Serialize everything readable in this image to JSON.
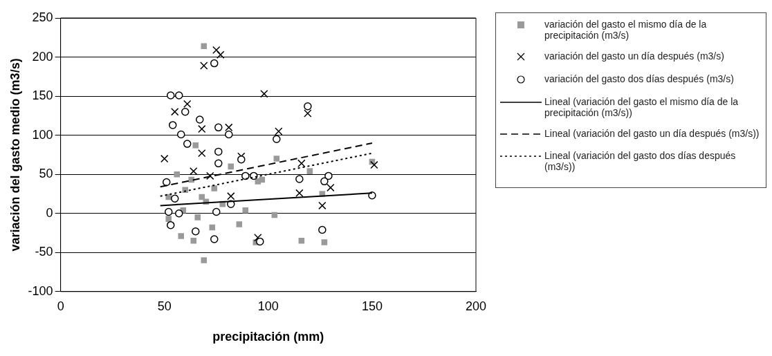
{
  "chart_data": {
    "type": "scatter",
    "xlabel": "precipitación (mm)",
    "ylabel": "variación del gasto medio (m3/s)",
    "xlim": [
      0,
      200
    ],
    "xticks": [
      0,
      50,
      100,
      150,
      200
    ],
    "ylim": [
      -100,
      250
    ],
    "yticks": [
      -100,
      -50,
      0,
      50,
      100,
      150,
      200,
      250
    ],
    "grid": "y",
    "legend": "right",
    "series": [
      {
        "name": "variación del gasto el mismo día de la precipitación (m3/s)",
        "type": "scatter",
        "marker": "square",
        "color": "#9a9a9a",
        "x": [
          69,
          69,
          104,
          95,
          120,
          150,
          126,
          103,
          116,
          127,
          94,
          86,
          89,
          97,
          82,
          65,
          73,
          58,
          64,
          52,
          52,
          68,
          63,
          59,
          78,
          74,
          60,
          70,
          56,
          66
        ],
        "values": [
          214,
          -60,
          70,
          41,
          54,
          66,
          25,
          -2,
          -35,
          -37,
          -37,
          -14,
          4,
          43,
          60,
          87,
          -18,
          -29,
          -35,
          -7,
          21,
          21,
          43,
          4,
          12,
          32,
          30,
          15,
          50,
          -5
        ]
      },
      {
        "name": "variación del gasto un día después (m3/s)",
        "type": "scatter",
        "marker": "cross",
        "color": "#000000",
        "x": [
          75,
          77,
          69,
          98,
          61,
          55,
          68,
          81,
          68,
          50,
          87,
          64,
          72,
          82,
          95,
          119,
          105,
          116,
          151,
          115,
          130,
          126
        ],
        "values": [
          209,
          203,
          189,
          153,
          140,
          130,
          108,
          110,
          77,
          70,
          73,
          54,
          48,
          22,
          -31,
          128,
          105,
          64,
          62,
          26,
          33,
          10
        ]
      },
      {
        "name": "variación del gasto dos días después (m3/s)",
        "type": "scatter",
        "marker": "circle",
        "color": "#000000",
        "x": [
          74,
          53,
          57,
          60,
          67,
          54,
          76,
          58,
          81,
          61,
          76,
          87,
          76,
          89,
          51,
          55,
          82,
          75,
          52,
          57,
          53,
          74,
          65,
          119,
          104,
          93,
          115,
          129,
          127,
          150,
          126,
          96
        ],
        "values": [
          192,
          151,
          151,
          130,
          120,
          113,
          110,
          101,
          101,
          89,
          79,
          69,
          64,
          48,
          40,
          19,
          12,
          2,
          2,
          0,
          -15,
          -33,
          -23,
          137,
          95,
          48,
          44,
          48,
          41,
          23,
          -21,
          -36
        ]
      },
      {
        "name": "Lineal (variación del gasto el mismo día de la precipitación (m3/s))",
        "type": "line",
        "line_style": "solid",
        "color": "#000000",
        "x": [
          48,
          150
        ],
        "values": [
          10,
          26
        ]
      },
      {
        "name": "Lineal (variación del gasto un día después (m3/s))",
        "type": "line",
        "line_style": "dashed",
        "color": "#000000",
        "x": [
          48,
          150
        ],
        "values": [
          34,
          90
        ]
      },
      {
        "name": "Lineal (variación del gasto dos días después (m3/s))",
        "type": "line",
        "line_style": "dotted",
        "color": "#000000",
        "x": [
          48,
          150
        ],
        "values": [
          22,
          77
        ]
      }
    ]
  }
}
